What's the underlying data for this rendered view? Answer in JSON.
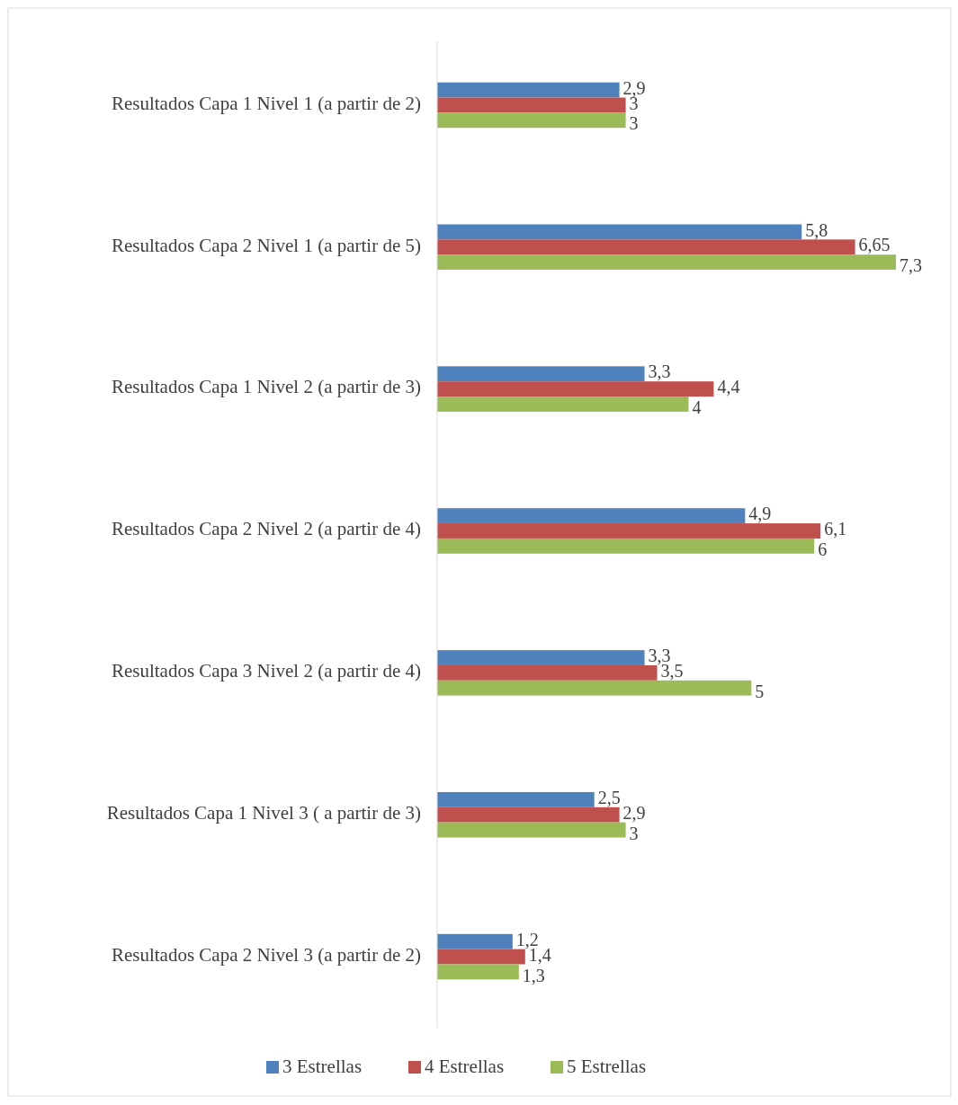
{
  "chart_data": {
    "type": "bar",
    "orientation": "horizontal",
    "legend": "bottom",
    "categories": [
      "Resultados Capa 1 Nivel 1 (a partir de 2)",
      "Resultados Capa 2 Nivel 1 (a partir de 5)",
      "Resultados Capa 1 Nivel 2 (a partir de 3)",
      "Resultados Capa 2 Nivel 2 (a partir de 4)",
      "Resultados Capa 3 Nivel 2 (a partir de 4)",
      "Resultados Capa 1 Nivel 3 ( a partir de 3)",
      "Resultados Capa 2 Nivel 3 (a partir de 2)"
    ],
    "series": [
      {
        "name": "3 Estrellas",
        "color": "#4f81bd",
        "values": [
          2.9,
          5.8,
          3.3,
          4.9,
          3.3,
          2.5,
          1.2
        ],
        "value_labels": [
          "2,9",
          "5,8",
          "3,3",
          "4,9",
          "3,3",
          "2,5",
          "1,2"
        ]
      },
      {
        "name": "4 Estrellas",
        "color": "#c0504d",
        "values": [
          3,
          6.65,
          4.4,
          6.1,
          3.5,
          2.9,
          1.4
        ],
        "value_labels": [
          "3",
          "6,65",
          "4,4",
          "6,1",
          "3,5",
          "2,9",
          "1,4"
        ]
      },
      {
        "name": "5 Estrellas",
        "color": "#9bbb59",
        "values": [
          3,
          7.3,
          4,
          6,
          5,
          3,
          1.3
        ],
        "value_labels": [
          "3",
          "7,3",
          "4",
          "6",
          "5",
          "3",
          "1,3"
        ]
      }
    ]
  }
}
